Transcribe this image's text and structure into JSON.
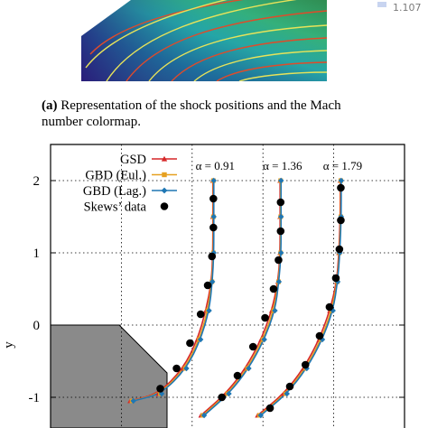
{
  "top_panel": {
    "colorbar_value": "1.107",
    "caption_tag": "(a)",
    "caption_text": "Representation of the shock positions and the Mach number colormap."
  },
  "chart_data": {
    "type": "line",
    "xlabel": "",
    "ylabel": "y",
    "ylim": [
      -1.3,
      2.3
    ],
    "yticks": [
      2,
      1,
      0,
      -1
    ],
    "ytick_labels": [
      "2",
      "1",
      "0",
      "-1"
    ],
    "xlim": [
      0,
      5
    ],
    "grid": true,
    "legend_position": "top-left",
    "annotations": [
      "α = 0.91",
      "α = 1.36",
      "α = 1.79"
    ],
    "series": [
      {
        "name": "GSD",
        "color": "#d62728",
        "marker": "triangle"
      },
      {
        "name": "GBD (Eul.)",
        "color": "#e6a020",
        "marker": "square"
      },
      {
        "name": "GBD (Lag.)",
        "color": "#1f77b4",
        "marker": "diamond"
      },
      {
        "name": "Skews’ data",
        "color": "#000000",
        "marker": "circle"
      }
    ],
    "curves": [
      {
        "alpha": "0.91",
        "x_top": 2.3,
        "points": [
          [
            2.3,
            2.0
          ],
          [
            2.3,
            1.5
          ],
          [
            2.3,
            1.0
          ],
          [
            2.28,
            0.6
          ],
          [
            2.22,
            0.2
          ],
          [
            2.1,
            -0.2
          ],
          [
            1.9,
            -0.6
          ],
          [
            1.55,
            -0.95
          ],
          [
            1.15,
            -1.05
          ]
        ]
      },
      {
        "alpha": "1.36",
        "x_top": 3.25,
        "points": [
          [
            3.25,
            2.0
          ],
          [
            3.25,
            1.5
          ],
          [
            3.25,
            1.0
          ],
          [
            3.22,
            0.6
          ],
          [
            3.15,
            0.2
          ],
          [
            3.0,
            -0.2
          ],
          [
            2.78,
            -0.6
          ],
          [
            2.5,
            -0.95
          ],
          [
            2.15,
            -1.25
          ]
        ]
      },
      {
        "alpha": "1.79",
        "x_top": 4.1,
        "points": [
          [
            4.1,
            2.0
          ],
          [
            4.1,
            1.5
          ],
          [
            4.08,
            1.0
          ],
          [
            4.05,
            0.6
          ],
          [
            3.97,
            0.2
          ],
          [
            3.82,
            -0.2
          ],
          [
            3.6,
            -0.6
          ],
          [
            3.32,
            -0.95
          ],
          [
            2.95,
            -1.25
          ]
        ]
      }
    ],
    "skews_points": [
      [
        2.3,
        1.75
      ],
      [
        2.3,
        1.35
      ],
      [
        2.28,
        0.95
      ],
      [
        2.22,
        0.55
      ],
      [
        2.12,
        0.15
      ],
      [
        1.97,
        -0.25
      ],
      [
        1.78,
        -0.6
      ],
      [
        1.55,
        -0.88
      ],
      [
        3.25,
        1.7
      ],
      [
        3.25,
        1.3
      ],
      [
        3.22,
        0.9
      ],
      [
        3.15,
        0.5
      ],
      [
        3.03,
        0.1
      ],
      [
        2.86,
        -0.3
      ],
      [
        2.64,
        -0.7
      ],
      [
        2.42,
        -1.0
      ],
      [
        4.1,
        1.9
      ],
      [
        4.1,
        1.45
      ],
      [
        4.08,
        1.05
      ],
      [
        4.03,
        0.65
      ],
      [
        3.94,
        0.25
      ],
      [
        3.8,
        -0.15
      ],
      [
        3.6,
        -0.55
      ],
      [
        3.38,
        -0.85
      ],
      [
        3.1,
        -1.15
      ]
    ]
  }
}
